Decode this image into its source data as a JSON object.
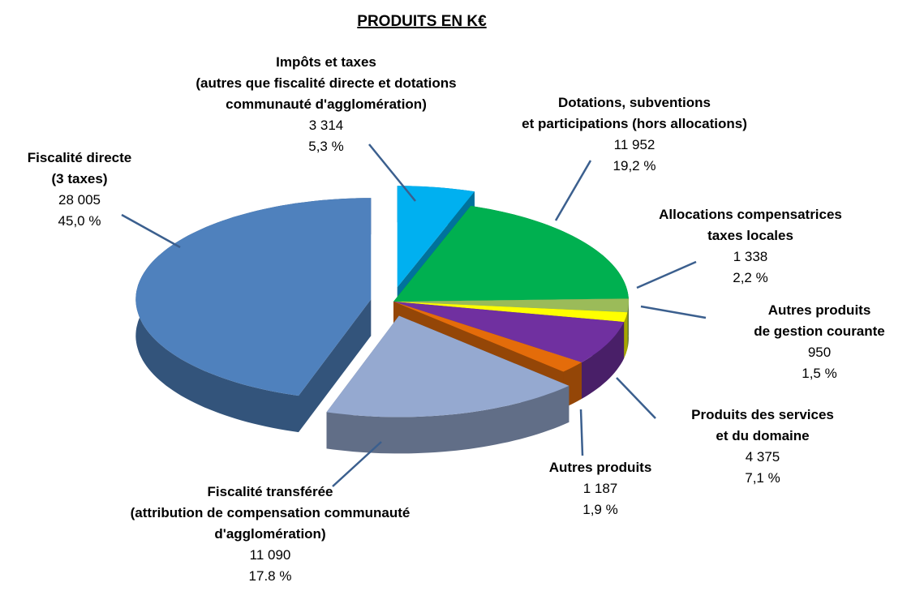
{
  "chart_data": {
    "type": "pie3d",
    "title": "PRODUITS  EN K€",
    "categories": [
      [
        "Impôts et taxes",
        "(autres que fiscalité directe et dotations",
        "communauté d'agglomération)"
      ],
      [
        "Dotations, subventions",
        "et participations (hors allocations)"
      ],
      [
        "Allocations compensatrices",
        "taxes locales"
      ],
      [
        "Autres produits",
        "de gestion courante"
      ],
      [
        "Produits des services",
        "et du domaine"
      ],
      [
        "Autres produits"
      ],
      [
        "Fiscalité transférée",
        "(attribution de compensation communauté",
        "d'agglomération)"
      ],
      [
        "Fiscalité directe",
        "(3 taxes)"
      ]
    ],
    "values": [
      3314,
      11952,
      1338,
      950,
      4375,
      1187,
      11090,
      28005
    ],
    "value_labels": [
      "3 314",
      "11 952",
      "1 338",
      "950",
      "4 375",
      "1 187",
      "11 090",
      "28 005"
    ],
    "percentages": [
      5.3,
      19.2,
      2.2,
      1.5,
      7.1,
      1.9,
      17.8,
      45.0
    ],
    "percentage_labels": [
      "5,3 %",
      "19,2 %",
      "2,2 %",
      "1,5 %",
      "7,1 %",
      "1,9 %",
      "17.8 %",
      "45,0 %"
    ],
    "colors": [
      "#00b0f0",
      "#00b050",
      "#9bbb59",
      "#ffff00",
      "#7030a0",
      "#e46c0a",
      "#95a9d0",
      "#4f81bd"
    ],
    "exploded": [
      true,
      false,
      false,
      false,
      false,
      false,
      true,
      true
    ]
  }
}
